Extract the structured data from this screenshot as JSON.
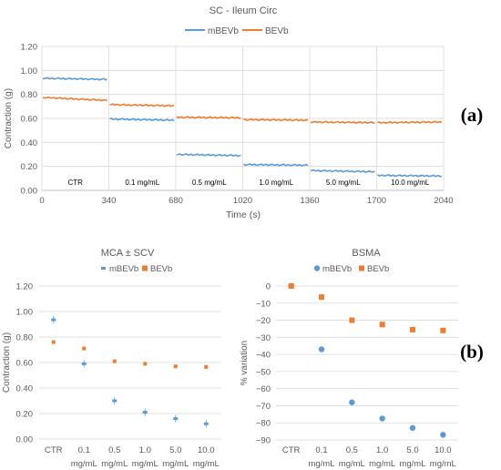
{
  "panel_labels": {
    "a": "(a)",
    "b": "(b)"
  },
  "colors": {
    "mBEVb": "#5B9BD5",
    "BEVb": "#ED7D31",
    "grid": "#d9d9d9",
    "text": "#595959"
  },
  "chart_data": [
    {
      "type": "line",
      "title": "SC - Ileum Circ",
      "xlabel": "Time (s)",
      "ylabel": "Contraction (g)",
      "xlim": [
        0,
        2040
      ],
      "ylim": [
        0,
        1.2
      ],
      "xticks": [
        "0",
        "340",
        "680",
        "1020",
        "1360",
        "1700",
        "2040"
      ],
      "yticks": [
        "0.00",
        "0.20",
        "0.40",
        "0.60",
        "0.80",
        "1.00",
        "1.20"
      ],
      "segment_labels": [
        "CTR",
        "0.1 mg/mL",
        "0.5 mg/mL",
        "1.0 mg/mL",
        "5.0 mg/mL",
        "10.0 mg/mL"
      ],
      "segments": [
        [
          0,
          340
        ],
        [
          340,
          680
        ],
        [
          680,
          1020
        ],
        [
          1020,
          1360
        ],
        [
          1360,
          1700
        ],
        [
          1700,
          2040
        ]
      ],
      "series": [
        {
          "name": "mBEVb",
          "color": "#5B9BD5",
          "values": [
            [
              0.935,
              0.925
            ],
            [
              0.595,
              0.585
            ],
            [
              0.3,
              0.29
            ],
            [
              0.215,
              0.21
            ],
            [
              0.165,
              0.155
            ],
            [
              0.125,
              0.12
            ]
          ]
        },
        {
          "name": "BEVb",
          "color": "#ED7D31",
          "values": [
            [
              0.775,
              0.75
            ],
            [
              0.715,
              0.705
            ],
            [
              0.61,
              0.605
            ],
            [
              0.59,
              0.585
            ],
            [
              0.57,
              0.565
            ],
            [
              0.565,
              0.57
            ]
          ]
        }
      ]
    },
    {
      "type": "scatter",
      "title": "MCA ± SCV",
      "xlabel": "",
      "ylabel": "Contraction (g)",
      "ylim": [
        0,
        1.2
      ],
      "yticks": [
        "0.00",
        "0.20",
        "0.40",
        "0.60",
        "0.80",
        "1.00",
        "1.20"
      ],
      "categories": [
        [
          "CTR"
        ],
        [
          "0.1",
          "mg/mL"
        ],
        [
          "0.5",
          "mg/mL"
        ],
        [
          "1.0",
          "mg/mL"
        ],
        [
          "5.0",
          "mg/mL"
        ],
        [
          "10.0",
          "mg/mL"
        ]
      ],
      "series": [
        {
          "name": "mBEVb",
          "color": "#5B9BD5",
          "values": [
            0.935,
            0.59,
            0.3,
            0.21,
            0.16,
            0.12
          ]
        },
        {
          "name": "BEVb",
          "color": "#ED7D31",
          "values": [
            0.76,
            0.71,
            0.61,
            0.59,
            0.57,
            0.565
          ]
        }
      ]
    },
    {
      "type": "scatter",
      "title": "BSMA",
      "xlabel": "",
      "ylabel": "% variation",
      "ylim": [
        -90,
        0
      ],
      "yticks": [
        "0",
        "−10",
        "−20",
        "−30",
        "−40",
        "−50",
        "−60",
        "−70",
        "−80",
        "−90"
      ],
      "categories": [
        [
          "CTR"
        ],
        [
          "0.1",
          "mg/mL"
        ],
        [
          "0.5",
          "mg/mL"
        ],
        [
          "1.0",
          "mg/mL"
        ],
        [
          "5.0",
          "mg/mL"
        ],
        [
          "10.0",
          "mg/mL"
        ]
      ],
      "series": [
        {
          "name": "mBEVb",
          "color": "#5B9BD5",
          "values": [
            0,
            -37,
            -68,
            -77.5,
            -83,
            -87
          ]
        },
        {
          "name": "BEVb",
          "color": "#ED7D31",
          "values": [
            0,
            -6.5,
            -20,
            -22.5,
            -25.5,
            -26
          ]
        }
      ]
    }
  ]
}
